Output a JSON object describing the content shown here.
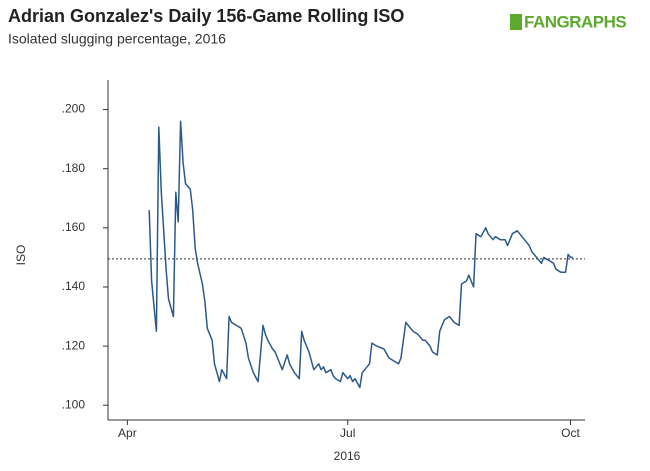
{
  "chart_data": {
    "type": "line",
    "title": "Adrian Gonzalez's Daily 156-Game Rolling ISO",
    "subtitle": "Isolated slugging percentage, 2016",
    "logo": "FANGRAPHS",
    "x_label": "2016",
    "y_label": "ISO",
    "xlim": [
      84,
      281
    ],
    "xticks": [
      {
        "value": 92,
        "label": "Apr"
      },
      {
        "value": 183,
        "label": "Jul"
      },
      {
        "value": 275,
        "label": "Oct"
      }
    ],
    "ylim": [
      0.095,
      0.21
    ],
    "yticks": [
      {
        "value": 0.1,
        "label": ".100"
      },
      {
        "value": 0.12,
        "label": ".120"
      },
      {
        "value": 0.14,
        "label": ".140"
      },
      {
        "value": 0.16,
        "label": ".160"
      },
      {
        "value": 0.18,
        "label": ".180"
      },
      {
        "value": 0.2,
        "label": ".200"
      }
    ],
    "hline": 0.1495,
    "grid": false,
    "x": [
      101,
      102,
      104,
      105,
      106,
      108,
      109,
      111,
      112,
      113,
      114,
      115,
      116,
      118,
      119,
      120,
      121,
      123,
      124,
      125,
      127,
      128,
      130,
      131,
      133,
      134,
      135,
      137,
      139,
      141,
      142,
      144,
      146,
      148,
      149,
      150,
      152,
      153,
      154,
      156,
      158,
      159,
      161,
      163,
      164,
      165,
      167,
      168,
      169,
      171,
      172,
      173,
      174,
      176,
      177,
      178,
      180,
      181,
      183,
      184,
      185,
      186,
      188,
      189,
      190,
      192,
      193,
      195,
      198,
      200,
      202,
      204,
      205,
      207,
      208,
      210,
      212,
      214,
      215,
      217,
      218,
      220,
      221,
      222,
      223,
      225,
      227,
      229,
      230,
      232,
      233,
      235,
      236,
      238,
      240,
      241,
      243,
      244,
      246,
      248,
      249,
      251,
      253,
      254,
      256,
      258,
      259,
      261,
      263,
      264,
      266,
      268,
      269,
      271,
      273,
      274,
      275,
      276
    ],
    "series": [
      {
        "name": "ISO",
        "color": "#2b5a8a",
        "values": [
          0.166,
          0.142,
          0.125,
          0.194,
          0.172,
          0.146,
          0.136,
          0.13,
          0.172,
          0.162,
          0.196,
          0.182,
          0.175,
          0.173,
          0.166,
          0.153,
          0.148,
          0.141,
          0.135,
          0.126,
          0.122,
          0.114,
          0.108,
          0.112,
          0.109,
          0.13,
          0.128,
          0.127,
          0.126,
          0.121,
          0.116,
          0.111,
          0.108,
          0.127,
          0.124,
          0.122,
          0.119,
          0.118,
          0.116,
          0.112,
          0.117,
          0.114,
          0.111,
          0.109,
          0.125,
          0.122,
          0.118,
          0.115,
          0.112,
          0.114,
          0.112,
          0.113,
          0.111,
          0.112,
          0.11,
          0.109,
          0.108,
          0.111,
          0.109,
          0.11,
          0.108,
          0.109,
          0.106,
          0.111,
          0.112,
          0.114,
          0.121,
          0.12,
          0.119,
          0.116,
          0.115,
          0.114,
          0.116,
          0.128,
          0.127,
          0.125,
          0.124,
          0.122,
          0.122,
          0.12,
          0.118,
          0.117,
          0.125,
          0.127,
          0.129,
          0.13,
          0.128,
          0.127,
          0.141,
          0.142,
          0.144,
          0.14,
          0.158,
          0.157,
          0.16,
          0.158,
          0.156,
          0.157,
          0.156,
          0.156,
          0.154,
          0.158,
          0.159,
          0.158,
          0.156,
          0.154,
          0.152,
          0.15,
          0.148,
          0.15,
          0.149,
          0.148,
          0.146,
          0.145,
          0.145,
          0.151,
          0.15,
          0.15
        ]
      }
    ]
  }
}
